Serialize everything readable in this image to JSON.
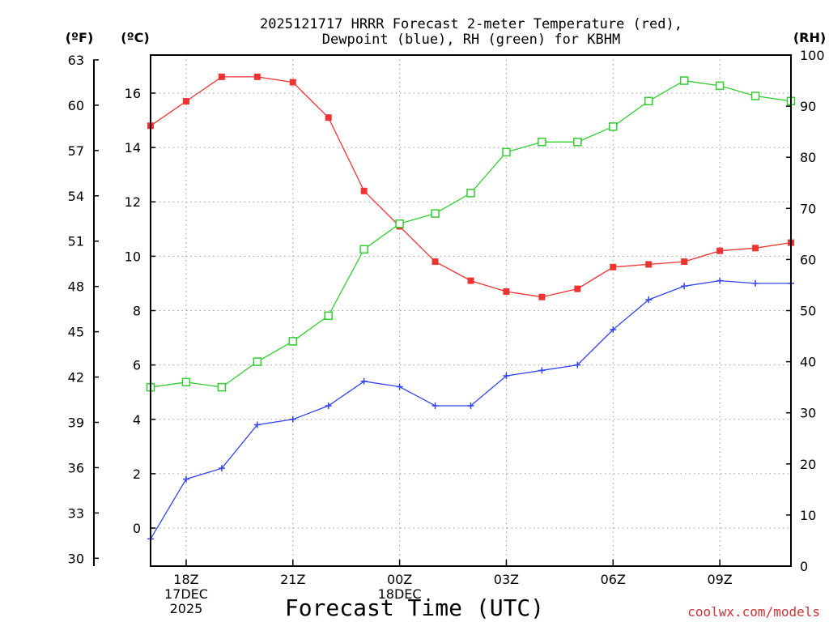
{
  "chart_data": {
    "type": "line",
    "title_lines": [
      "2025121717 HRRR Forecast 2-meter Temperature (red),",
      "Dewpoint (blue), RH (green) for KBHM"
    ],
    "xlabel": "Forecast Time (UTC)",
    "credit": "coolwx.com/models",
    "units": {
      "fahrenheit": "(ºF)",
      "celsius": "(ºC)",
      "rh": "(RH)"
    },
    "x_ticks": [
      {
        "hour": 1,
        "lines": [
          "18Z",
          "17DEC",
          "2025"
        ]
      },
      {
        "hour": 4,
        "lines": [
          "21Z"
        ]
      },
      {
        "hour": 7,
        "lines": [
          "00Z",
          "18DEC"
        ]
      },
      {
        "hour": 10,
        "lines": [
          "03Z"
        ]
      },
      {
        "hour": 13,
        "lines": [
          "06Z"
        ]
      },
      {
        "hour": 16,
        "lines": [
          "09Z"
        ]
      }
    ],
    "x_range": [
      0,
      18
    ],
    "celsius_range": [
      -1.4,
      17.4
    ],
    "rh_range": [
      0,
      100
    ],
    "celsius_ticks": [
      "0",
      "2",
      "4",
      "6",
      "8",
      "10",
      "12",
      "14",
      "16"
    ],
    "fahrenheit_ticks": [
      "30",
      "33",
      "36",
      "39",
      "42",
      "45",
      "48",
      "51",
      "54",
      "57",
      "60",
      "63"
    ],
    "rh_ticks": [
      "0",
      "10",
      "20",
      "30",
      "40",
      "50",
      "60",
      "70",
      "80",
      "90",
      "100"
    ],
    "series": [
      {
        "name": "2-meter Temperature",
        "axis": "celsius",
        "color": "#ee3333",
        "marker": "filled-square",
        "hours": [
          0,
          1,
          2,
          3,
          4,
          5,
          6,
          7,
          8,
          9,
          10,
          11,
          12,
          13,
          14,
          15,
          16,
          17,
          18
        ],
        "values": [
          14.8,
          15.7,
          16.6,
          16.6,
          16.4,
          15.1,
          12.4,
          11.1,
          9.8,
          9.1,
          8.7,
          8.5,
          8.8,
          9.6,
          9.7,
          9.8,
          10.2,
          10.3,
          10.5
        ]
      },
      {
        "name": "Dewpoint",
        "axis": "celsius",
        "color": "#3344ee",
        "marker": "plus",
        "hours": [
          0,
          1,
          2,
          3,
          4,
          5,
          6,
          7,
          8,
          9,
          10,
          11,
          12,
          13,
          14,
          15,
          16,
          17,
          18
        ],
        "values": [
          -0.4,
          1.8,
          2.2,
          3.8,
          4.0,
          4.5,
          5.4,
          5.2,
          4.5,
          4.5,
          5.6,
          5.8,
          6.0,
          7.3,
          8.4,
          8.9,
          9.1,
          9.0,
          9.0
        ]
      },
      {
        "name": "RH",
        "axis": "rh",
        "color": "#33cc33",
        "marker": "open-square",
        "hours": [
          0,
          1,
          2,
          3,
          4,
          5,
          6,
          7,
          8,
          9,
          10,
          11,
          12,
          13,
          14,
          15,
          16,
          17,
          18
        ],
        "values": [
          35,
          36,
          35,
          40,
          44,
          49,
          62,
          67,
          69,
          73,
          81,
          83,
          83,
          86,
          91,
          95,
          94,
          92,
          91
        ]
      }
    ]
  }
}
